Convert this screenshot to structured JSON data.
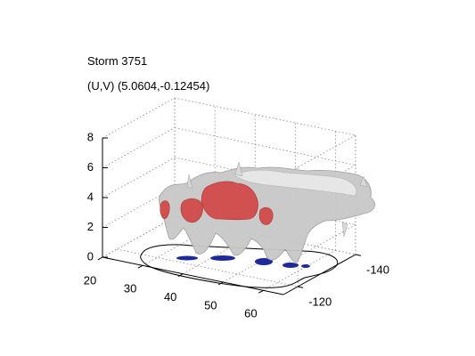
{
  "chart_data": {
    "type": "3d-isosurface",
    "title_lines": [
      "Storm 3751",
      "(U,V) (5.0604,-0.12454)"
    ],
    "xlabel": "",
    "ylabel": "",
    "zlabel": "",
    "xlim": [
      20,
      65
    ],
    "ylim": [
      -140,
      -115
    ],
    "zlim": [
      0,
      8
    ],
    "x_ticks": [
      20,
      30,
      40,
      50,
      60
    ],
    "y_ticks": [
      -140,
      -120
    ],
    "z_ticks": [
      0,
      2,
      4,
      6,
      8
    ],
    "grid": true,
    "box": "open",
    "colors": {
      "grey_surface": "#c8c8c8",
      "red_surface": "#d24a4a",
      "blue_surface": "#1c2a9c",
      "outline": "#000000"
    }
  }
}
